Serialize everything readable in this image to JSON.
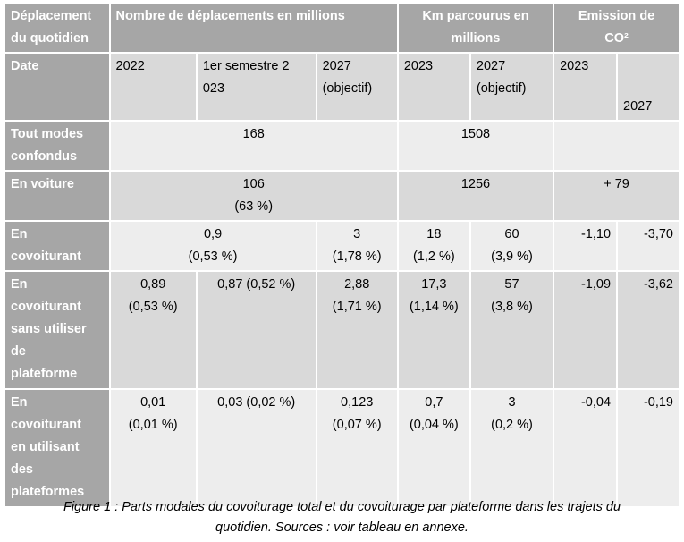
{
  "table": {
    "header": {
      "col1": [
        "Déplacement",
        "du quotidien"
      ],
      "group_trips": "Nombre de déplacements en millions",
      "group_km": [
        "Km parcourus en",
        "millions"
      ],
      "group_co2": [
        "Emission de",
        "CO²"
      ]
    },
    "date_row": {
      "label": "Date",
      "c2022": "2022",
      "csem": [
        "1er semestre 2",
        "023"
      ],
      "c2027a": [
        "2027",
        "(objectif)"
      ],
      "c2023km": "2023",
      "c2027km": [
        "2027",
        "(objectif)"
      ],
      "c2023co2": "2023",
      "c2027co2": "2027"
    },
    "rows": {
      "all_modes": {
        "label": [
          "Tout modes",
          "confondus"
        ],
        "trips": "168",
        "km": "1508"
      },
      "car": {
        "label": "En voiture",
        "trips": [
          "106",
          "(63 %)"
        ],
        "km": "1256",
        "co2": "+ 79"
      },
      "carpool": {
        "label": [
          "En",
          "covoiturant"
        ],
        "trips_2022_2023": [
          "0,9",
          "(0,53 %)"
        ],
        "trips_2027": [
          "3",
          "(1,78 %)"
        ],
        "km_2023": [
          "18",
          "(1,2 %)"
        ],
        "km_2027": [
          "60",
          "(3,9 %)"
        ],
        "co2_2023": "-1,10",
        "co2_2027": "-3,70"
      },
      "carpool_no_platform": {
        "label": [
          "En",
          "covoiturant",
          "sans utiliser",
          "de",
          "plateforme"
        ],
        "t2022": [
          "0,89",
          "(0,53 %)"
        ],
        "tsem": "0,87 (0,52 %)",
        "t2027": [
          "2,88",
          "(1,71 %)"
        ],
        "km_2023": [
          "17,3",
          "(1,14 %)"
        ],
        "km_2027": [
          "57",
          "(3,8 %)"
        ],
        "co2_2023": "-1,09",
        "co2_2027": "-3,62"
      },
      "carpool_platform": {
        "label": [
          "En",
          "covoiturant",
          "en utilisant",
          "des",
          "plateformes"
        ],
        "t2022": [
          "0,01",
          "(0,01 %)"
        ],
        "tsem": "0,03 (0,02 %)",
        "t2027": [
          "0,123",
          "(0,07 %)"
        ],
        "km_2023": [
          "0,7",
          "(0,04 %)"
        ],
        "km_2027": [
          "3",
          "(0,2 %)"
        ],
        "co2_2023": "-0,04",
        "co2_2027": "-0,19"
      }
    }
  },
  "caption": [
    "Figure 1 : Parts modales du covoiturage total et du covoiturage par plateforme dans les trajets du",
    "quotidien. Sources : voir tableau en annexe."
  ]
}
